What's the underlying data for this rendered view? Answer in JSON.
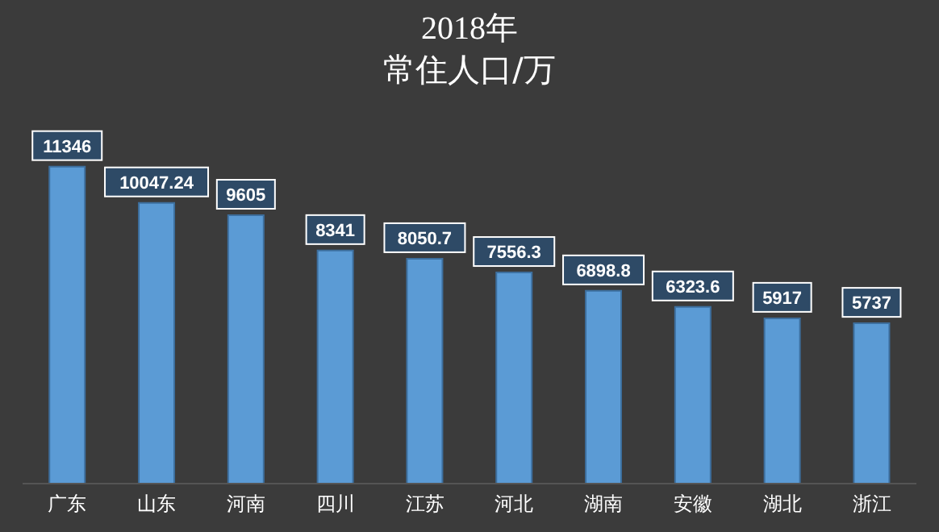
{
  "chart_data": {
    "type": "bar",
    "title": "2018年",
    "subtitle": "常住人口/万",
    "categories": [
      "广东",
      "山东",
      "河南",
      "四川",
      "江苏",
      "河北",
      "湖南",
      "安徽",
      "湖北",
      "浙江"
    ],
    "values": [
      11346,
      10047.24,
      9605,
      8341,
      8050.7,
      7556.3,
      6898.8,
      6323.6,
      5917,
      5737
    ],
    "color": "#5b9bd5",
    "data_labels": true,
    "grid": false,
    "legend": false
  }
}
